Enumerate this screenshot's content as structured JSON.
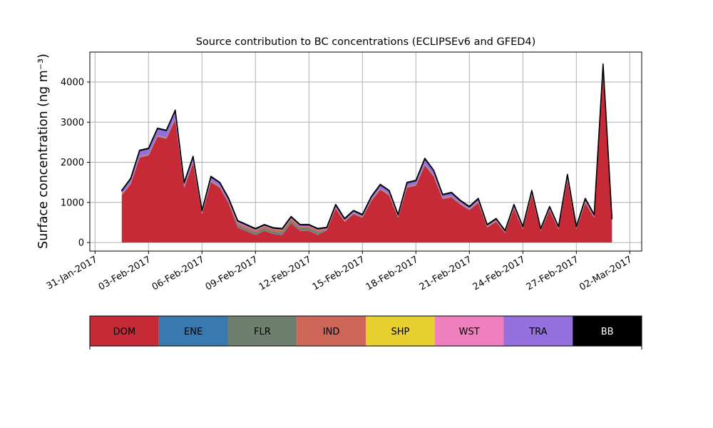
{
  "chart_data": {
    "type": "stacked_area",
    "title": "Source contribution to BC concentrations (ECLIPSEv6 and GFED4)",
    "y_label": "Surface concentration (ng m⁻³)",
    "x": [
      "2017-02-01 12:00",
      "2017-02-02 00:00",
      "2017-02-02 12:00",
      "2017-02-03 00:00",
      "2017-02-03 12:00",
      "2017-02-04 00:00",
      "2017-02-04 12:00",
      "2017-02-05 00:00",
      "2017-02-05 12:00",
      "2017-02-06 00:00",
      "2017-02-06 12:00",
      "2017-02-07 00:00",
      "2017-02-07 12:00",
      "2017-02-08 00:00",
      "2017-02-08 12:00",
      "2017-02-09 00:00",
      "2017-02-09 12:00",
      "2017-02-10 00:00",
      "2017-02-10 12:00",
      "2017-02-11 00:00",
      "2017-02-11 12:00",
      "2017-02-12 00:00",
      "2017-02-12 12:00",
      "2017-02-13 00:00",
      "2017-02-13 12:00",
      "2017-02-14 00:00",
      "2017-02-14 12:00",
      "2017-02-15 00:00",
      "2017-02-15 12:00",
      "2017-02-16 00:00",
      "2017-02-16 12:00",
      "2017-02-17 00:00",
      "2017-02-17 12:00",
      "2017-02-18 00:00",
      "2017-02-18 12:00",
      "2017-02-19 00:00",
      "2017-02-19 12:00",
      "2017-02-20 00:00",
      "2017-02-20 12:00",
      "2017-02-21 00:00",
      "2017-02-21 12:00",
      "2017-02-22 00:00",
      "2017-02-22 12:00",
      "2017-02-23 00:00",
      "2017-02-23 12:00",
      "2017-02-24 00:00",
      "2017-02-24 12:00",
      "2017-02-25 00:00",
      "2017-02-25 12:00",
      "2017-02-26 00:00",
      "2017-02-26 12:00",
      "2017-02-27 00:00",
      "2017-02-27 12:00",
      "2017-02-28 00:00",
      "2017-02-28 12:00",
      "2017-03-01 00:00"
    ],
    "series": [
      {
        "name": "DOM",
        "color": "#c52a36",
        "values": [
          1175,
          1455,
          2115,
          2165,
          2635,
          2585,
          3055,
          1365,
          1975,
          695,
          1505,
          1365,
          975,
          370,
          280,
          190,
          290,
          210,
          190,
          480,
          290,
          290,
          190,
          305,
          845,
          515,
          705,
          615,
          1035,
          1315,
          1175,
          615,
          1365,
          1415,
          1925,
          1645,
          1085,
          1125,
          945,
          805,
          985,
          375,
          515,
          235,
          845,
          325,
          1175,
          285,
          805,
          325,
          1555,
          325,
          985,
          615,
          4205,
          515
        ]
      },
      {
        "name": "ENE",
        "color": "#3a78b0",
        "values": [
          5,
          5,
          5,
          5,
          5,
          5,
          5,
          5,
          5,
          5,
          5,
          5,
          5,
          5,
          5,
          5,
          5,
          5,
          5,
          5,
          5,
          5,
          5,
          5,
          5,
          5,
          5,
          5,
          5,
          5,
          5,
          5,
          5,
          5,
          5,
          5,
          5,
          5,
          5,
          5,
          5,
          5,
          5,
          5,
          5,
          5,
          5,
          5,
          5,
          5,
          5,
          5,
          5,
          5,
          5,
          5
        ]
      },
      {
        "name": "FLR",
        "color": "#6e7f6f",
        "values": [
          10,
          10,
          10,
          10,
          10,
          10,
          10,
          10,
          10,
          10,
          10,
          10,
          10,
          60,
          60,
          60,
          60,
          60,
          60,
          60,
          60,
          60,
          60,
          10,
          10,
          10,
          10,
          10,
          10,
          10,
          10,
          10,
          10,
          10,
          10,
          10,
          10,
          10,
          10,
          10,
          10,
          10,
          10,
          10,
          10,
          10,
          10,
          10,
          10,
          10,
          10,
          10,
          10,
          10,
          10,
          10
        ]
      },
      {
        "name": "IND",
        "color": "#cc6656",
        "values": [
          15,
          15,
          15,
          15,
          15,
          15,
          15,
          15,
          15,
          15,
          15,
          15,
          15,
          50,
          50,
          50,
          50,
          50,
          50,
          50,
          50,
          50,
          50,
          15,
          15,
          15,
          15,
          15,
          15,
          15,
          15,
          15,
          15,
          15,
          15,
          15,
          15,
          15,
          15,
          15,
          15,
          15,
          15,
          15,
          15,
          15,
          15,
          15,
          15,
          15,
          15,
          15,
          15,
          15,
          15,
          15
        ]
      },
      {
        "name": "SHP",
        "color": "#e6cf2e",
        "values": [
          2,
          2,
          2,
          2,
          2,
          2,
          2,
          2,
          2,
          2,
          2,
          2,
          2,
          2,
          2,
          2,
          2,
          2,
          2,
          2,
          2,
          2,
          2,
          2,
          2,
          2,
          2,
          2,
          2,
          2,
          2,
          2,
          2,
          2,
          2,
          2,
          2,
          2,
          2,
          2,
          2,
          2,
          2,
          2,
          2,
          2,
          2,
          2,
          2,
          2,
          2,
          2,
          2,
          2,
          2,
          2
        ]
      },
      {
        "name": "WST",
        "color": "#f07fbf",
        "values": [
          3,
          3,
          3,
          3,
          3,
          3,
          3,
          3,
          3,
          3,
          3,
          3,
          3,
          3,
          3,
          3,
          3,
          3,
          3,
          3,
          3,
          3,
          3,
          3,
          3,
          3,
          3,
          3,
          3,
          3,
          3,
          3,
          3,
          3,
          3,
          3,
          3,
          3,
          3,
          3,
          3,
          3,
          3,
          3,
          3,
          3,
          3,
          3,
          3,
          3,
          3,
          3,
          3,
          3,
          3,
          3
        ]
      },
      {
        "name": "TRA",
        "color": "#9370db",
        "values": [
          80,
          100,
          140,
          140,
          170,
          170,
          200,
          90,
          130,
          60,
          100,
          90,
          80,
          50,
          40,
          30,
          30,
          30,
          30,
          40,
          30,
          30,
          30,
          30,
          60,
          40,
          50,
          40,
          70,
          90,
          80,
          40,
          90,
          90,
          130,
          110,
          70,
          80,
          60,
          50,
          70,
          30,
          40,
          20,
          60,
          30,
          80,
          20,
          50,
          30,
          100,
          30,
          70,
          40,
          200,
          40
        ]
      },
      {
        "name": "BB",
        "color": "#000000",
        "values": [
          10,
          10,
          10,
          10,
          10,
          10,
          10,
          10,
          10,
          10,
          10,
          10,
          10,
          10,
          10,
          10,
          10,
          10,
          10,
          10,
          10,
          10,
          10,
          10,
          10,
          10,
          10,
          10,
          10,
          10,
          10,
          10,
          10,
          10,
          10,
          10,
          10,
          10,
          10,
          10,
          10,
          10,
          10,
          10,
          10,
          10,
          10,
          10,
          10,
          10,
          10,
          10,
          10,
          10,
          10,
          10
        ]
      }
    ],
    "xlim": [
      "2017-01-30 17:00",
      "2017-03-02 16:00"
    ],
    "xticks": [
      {
        "value": "2017-01-31",
        "label": "31-Jan-2017"
      },
      {
        "value": "2017-02-03",
        "label": "03-Feb-2017"
      },
      {
        "value": "2017-02-06",
        "label": "06-Feb-2017"
      },
      {
        "value": "2017-02-09",
        "label": "09-Feb-2017"
      },
      {
        "value": "2017-02-12",
        "label": "12-Feb-2017"
      },
      {
        "value": "2017-02-15",
        "label": "15-Feb-2017"
      },
      {
        "value": "2017-02-18",
        "label": "18-Feb-2017"
      },
      {
        "value": "2017-02-21",
        "label": "21-Feb-2017"
      },
      {
        "value": "2017-02-24",
        "label": "24-Feb-2017"
      },
      {
        "value": "2017-02-27",
        "label": "27-Feb-2017"
      },
      {
        "value": "2017-03-02",
        "label": "02-Mar-2017"
      }
    ],
    "ylim": [
      -213,
      4747
    ],
    "yticks": [
      0,
      1000,
      2000,
      3000,
      4000
    ],
    "grid": true,
    "legend": "bottom"
  }
}
